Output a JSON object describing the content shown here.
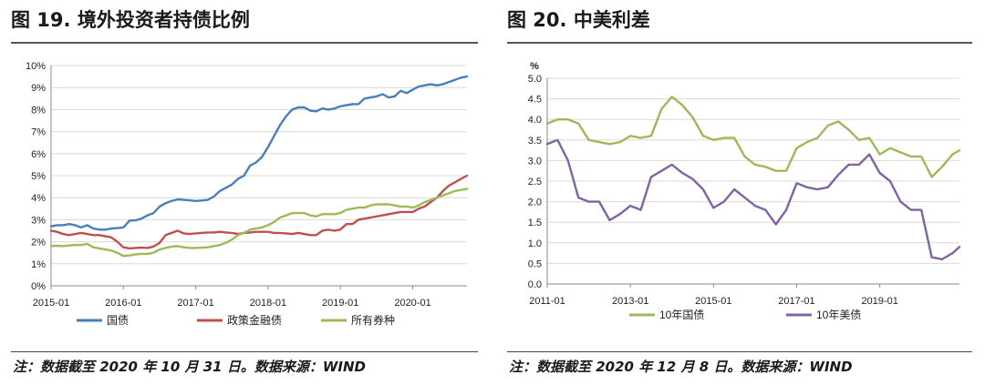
{
  "figures": [
    {
      "title": "图 19. 境外投资者持债比例",
      "note": "注：数据截至 2020 年 10 月 31 日。数据来源：WIND"
    },
    {
      "title": "图 20. 中美利差",
      "note": "注：数据截至 2020 年 12 月 8 日。数据来源：WIND"
    }
  ],
  "chart_data": [
    {
      "type": "line",
      "title": "图 19. 境外投资者持债比例",
      "xlabel": "",
      "ylabel": "",
      "x_tick_labels": [
        "2015-01",
        "2016-01",
        "2017-01",
        "2018-01",
        "2019-01",
        "2020-01"
      ],
      "x_range": [
        "2015-01",
        "2020-10"
      ],
      "y_tick_labels": [
        "0%",
        "1%",
        "2%",
        "3%",
        "4%",
        "5%",
        "6%",
        "7%",
        "8%",
        "9%",
        "10%"
      ],
      "ylim": [
        0,
        10
      ],
      "grid": "horizontal",
      "legend_position": "bottom",
      "x": [
        "2015-01",
        "2015-02",
        "2015-03",
        "2015-04",
        "2015-05",
        "2015-06",
        "2015-07",
        "2015-08",
        "2015-09",
        "2015-10",
        "2015-11",
        "2015-12",
        "2016-01",
        "2016-02",
        "2016-03",
        "2016-04",
        "2016-05",
        "2016-06",
        "2016-07",
        "2016-08",
        "2016-09",
        "2016-10",
        "2016-11",
        "2016-12",
        "2017-01",
        "2017-02",
        "2017-03",
        "2017-04",
        "2017-05",
        "2017-06",
        "2017-07",
        "2017-08",
        "2017-09",
        "2017-10",
        "2017-11",
        "2017-12",
        "2018-01",
        "2018-02",
        "2018-03",
        "2018-04",
        "2018-05",
        "2018-06",
        "2018-07",
        "2018-08",
        "2018-09",
        "2018-10",
        "2018-11",
        "2018-12",
        "2019-01",
        "2019-02",
        "2019-03",
        "2019-04",
        "2019-05",
        "2019-06",
        "2019-07",
        "2019-08",
        "2019-09",
        "2019-10",
        "2019-11",
        "2019-12",
        "2020-01",
        "2020-02",
        "2020-03",
        "2020-04",
        "2020-05",
        "2020-06",
        "2020-07",
        "2020-08",
        "2020-09",
        "2020-10"
      ],
      "series": [
        {
          "name": "国债",
          "color": "#4a7ebb",
          "values": [
            2.7,
            2.75,
            2.75,
            2.8,
            2.75,
            2.65,
            2.75,
            2.6,
            2.55,
            2.55,
            2.6,
            2.62,
            2.65,
            2.95,
            2.97,
            3.05,
            3.2,
            3.3,
            3.6,
            3.75,
            3.85,
            3.92,
            3.9,
            3.88,
            3.85,
            3.87,
            3.9,
            4.05,
            4.3,
            4.45,
            4.6,
            4.85,
            5.0,
            5.45,
            5.6,
            5.85,
            6.3,
            6.8,
            7.3,
            7.7,
            8.0,
            8.1,
            8.1,
            7.95,
            7.92,
            8.05,
            8.0,
            8.05,
            8.15,
            8.2,
            8.25,
            8.25,
            8.5,
            8.55,
            8.6,
            8.7,
            8.55,
            8.6,
            8.85,
            8.75,
            8.9,
            9.05,
            9.1,
            9.15,
            9.1,
            9.15,
            9.25,
            9.35,
            9.45,
            9.5
          ]
        },
        {
          "name": "政策金融债",
          "color": "#c0504d",
          "values": [
            2.5,
            2.45,
            2.35,
            2.3,
            2.35,
            2.4,
            2.35,
            2.3,
            2.3,
            2.25,
            2.2,
            2.0,
            1.75,
            1.7,
            1.72,
            1.73,
            1.72,
            1.78,
            1.95,
            2.3,
            2.4,
            2.5,
            2.38,
            2.35,
            2.38,
            2.4,
            2.42,
            2.42,
            2.45,
            2.42,
            2.4,
            2.35,
            2.4,
            2.42,
            2.45,
            2.45,
            2.45,
            2.4,
            2.4,
            2.38,
            2.35,
            2.4,
            2.35,
            2.3,
            2.3,
            2.5,
            2.55,
            2.5,
            2.55,
            2.8,
            2.8,
            3.0,
            3.05,
            3.1,
            3.15,
            3.2,
            3.25,
            3.3,
            3.35,
            3.35,
            3.35,
            3.5,
            3.6,
            3.8,
            4.0,
            4.3,
            4.55,
            4.7,
            4.85,
            5.0
          ]
        },
        {
          "name": "所有券种",
          "color": "#9bbb59",
          "values": [
            1.8,
            1.82,
            1.8,
            1.83,
            1.85,
            1.85,
            1.9,
            1.75,
            1.7,
            1.65,
            1.6,
            1.5,
            1.35,
            1.38,
            1.42,
            1.45,
            1.45,
            1.5,
            1.65,
            1.72,
            1.78,
            1.8,
            1.75,
            1.72,
            1.72,
            1.73,
            1.75,
            1.8,
            1.85,
            1.95,
            2.1,
            2.3,
            2.4,
            2.55,
            2.6,
            2.65,
            2.75,
            2.9,
            3.1,
            3.2,
            3.3,
            3.3,
            3.3,
            3.2,
            3.15,
            3.25,
            3.25,
            3.25,
            3.3,
            3.45,
            3.5,
            3.55,
            3.55,
            3.65,
            3.7,
            3.7,
            3.7,
            3.65,
            3.6,
            3.6,
            3.55,
            3.65,
            3.8,
            3.9,
            4.0,
            4.1,
            4.2,
            4.3,
            4.35,
            4.4
          ]
        }
      ]
    },
    {
      "type": "line",
      "title": "图 20. 中美利差",
      "ylabel": "%",
      "xlabel": "",
      "x_tick_labels": [
        "2011-01",
        "2013-01",
        "2015-01",
        "2017-01",
        "2019-01"
      ],
      "x_range": [
        "2011-01",
        "2020-12"
      ],
      "y_tick_labels": [
        "0.0",
        "0.5",
        "1.0",
        "1.5",
        "2.0",
        "2.5",
        "3.0",
        "3.5",
        "4.0",
        "4.5",
        "5.0"
      ],
      "ylim": [
        0,
        5
      ],
      "grid": "horizontal",
      "legend_position": "bottom",
      "x": [
        "2011-01",
        "2011-04",
        "2011-07",
        "2011-10",
        "2012-01",
        "2012-04",
        "2012-07",
        "2012-10",
        "2013-01",
        "2013-04",
        "2013-07",
        "2013-10",
        "2014-01",
        "2014-04",
        "2014-07",
        "2014-10",
        "2015-01",
        "2015-04",
        "2015-07",
        "2015-10",
        "2016-01",
        "2016-04",
        "2016-07",
        "2016-10",
        "2017-01",
        "2017-04",
        "2017-07",
        "2017-10",
        "2018-01",
        "2018-04",
        "2018-07",
        "2018-10",
        "2019-01",
        "2019-04",
        "2019-07",
        "2019-10",
        "2020-01",
        "2020-04",
        "2020-07",
        "2020-10",
        "2020-12"
      ],
      "series": [
        {
          "name": "10年国债",
          "color": "#9bbb59",
          "values": [
            3.9,
            4.0,
            4.0,
            3.9,
            3.5,
            3.45,
            3.4,
            3.45,
            3.6,
            3.55,
            3.6,
            4.25,
            4.55,
            4.35,
            4.05,
            3.6,
            3.5,
            3.55,
            3.55,
            3.1,
            2.9,
            2.85,
            2.75,
            2.75,
            3.3,
            3.45,
            3.55,
            3.85,
            3.95,
            3.75,
            3.5,
            3.55,
            3.15,
            3.3,
            3.2,
            3.1,
            3.1,
            2.6,
            2.85,
            3.15,
            3.25
          ]
        },
        {
          "name": "10年美债",
          "color": "#8064a2",
          "values": [
            3.4,
            3.5,
            3.0,
            2.1,
            2.0,
            2.0,
            1.55,
            1.7,
            1.9,
            1.8,
            2.6,
            2.75,
            2.9,
            2.7,
            2.55,
            2.3,
            1.85,
            2.0,
            2.3,
            2.1,
            1.9,
            1.8,
            1.45,
            1.8,
            2.45,
            2.35,
            2.3,
            2.35,
            2.65,
            2.9,
            2.9,
            3.15,
            2.7,
            2.5,
            2.0,
            1.8,
            1.8,
            0.65,
            0.6,
            0.75,
            0.9
          ]
        }
      ]
    }
  ]
}
